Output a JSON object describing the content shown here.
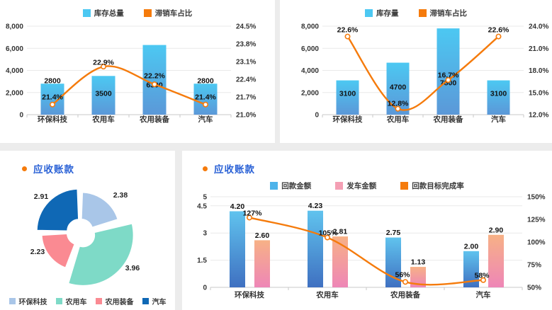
{
  "style": {
    "accent_orange": "#f57b0c",
    "title_blue": "#2b62d6",
    "panel_bg": "#ffffff",
    "page_bg": "#ececec",
    "grid_color": "#e9e9e9",
    "axis_color": "#c9c9c9",
    "tick_text": "#333333",
    "label_text": "#111111",
    "bar_blue_top": "#4cc8f2",
    "bar_blue_bottom": "#5b98d8",
    "bar4_blue_top": "#60c3ee",
    "bar4_blue_bottom": "#3f70c1",
    "bar4_pink_top": "#f7b186",
    "bar4_pink_bottom": "#ee86b7",
    "legend4_blue": "#4db3ea",
    "legend4_pink": "#f49fb4",
    "donut_colors": [
      "#a9c6e8",
      "#7edac7",
      "#fa8a92",
      "#0f68b5"
    ]
  },
  "chart_data": [
    {
      "panel": "top-left",
      "type": "bar+line",
      "categories": [
        "环保科技",
        "农用车",
        "农用装备",
        "汽车"
      ],
      "legend": [
        "库存总量",
        "滞销车占比"
      ],
      "series": [
        {
          "name": "库存总量",
          "type": "bar",
          "values": [
            2800,
            3500,
            6300,
            2800
          ],
          "labels": [
            "2800",
            "3500",
            "6300",
            "2800"
          ]
        },
        {
          "name": "滞销车占比",
          "type": "line",
          "values": [
            21.4,
            22.9,
            22.2,
            21.4
          ],
          "labels": [
            "21.4%",
            "22.9%",
            "22.2%",
            "21.4%"
          ]
        }
      ],
      "y_left": {
        "min": 0,
        "max": 8000,
        "tick_values": [
          0,
          2000,
          4000,
          6000,
          8000
        ],
        "tick_labels": [
          "0",
          "2,000",
          "4,000",
          "6,000",
          "8,000"
        ]
      },
      "y_right": {
        "min": 21.0,
        "max": 24.5,
        "tick_values": [
          21.0,
          21.7,
          22.4,
          23.1,
          23.8,
          24.5
        ],
        "tick_labels": [
          "21.0%",
          "21.7%",
          "22.4%",
          "23.1%",
          "23.8%",
          "24.5%"
        ]
      }
    },
    {
      "panel": "top-right",
      "type": "bar+line",
      "categories": [
        "环保科技",
        "农用车",
        "农用装备",
        "汽车"
      ],
      "legend": [
        "库存量",
        "滞销车占比"
      ],
      "series": [
        {
          "name": "库存量",
          "type": "bar",
          "values": [
            3100,
            4700,
            7800,
            3100
          ],
          "labels": [
            "3100",
            "4700",
            "7800",
            "3100"
          ]
        },
        {
          "name": "滞销车占比",
          "type": "line",
          "values": [
            22.6,
            12.8,
            16.7,
            22.6
          ],
          "labels": [
            "22.6%",
            "12.8%",
            "16.7%",
            "22.6%"
          ]
        }
      ],
      "y_left": {
        "min": 0,
        "max": 8000,
        "tick_values": [
          0,
          2000,
          4000,
          6000,
          8000
        ],
        "tick_labels": [
          "0",
          "2,000",
          "4,000",
          "6,000",
          "8,000"
        ]
      },
      "y_right": {
        "min": 12.0,
        "max": 24.0,
        "tick_values": [
          12,
          15,
          18,
          21,
          24
        ],
        "tick_labels": [
          "12.0%",
          "15.0%",
          "18.0%",
          "21.0%",
          "24.0%"
        ]
      }
    },
    {
      "panel": "bottom-left",
      "type": "donut",
      "title": "应收账款",
      "labels": [
        "环保科技",
        "农用车",
        "农用装备",
        "汽车"
      ],
      "values": [
        2.38,
        3.96,
        2.23,
        2.91
      ],
      "value_labels": [
        "2.38",
        "3.96",
        "2.23",
        "2.91"
      ],
      "legend": [
        "环保科技",
        "农用车",
        "农用装备",
        "汽车"
      ]
    },
    {
      "panel": "bottom-right",
      "type": "grouped-bar+line",
      "title": "应收账款",
      "categories": [
        "环保科技",
        "农用车",
        "农用装备",
        "汽车"
      ],
      "legend": [
        "回款金额",
        "发车金额",
        "回款目标完成率"
      ],
      "series": [
        {
          "name": "回款金额",
          "type": "bar",
          "values": [
            4.2,
            4.23,
            2.75,
            2.0
          ],
          "labels": [
            "4.20",
            "4.23",
            "2.75",
            "2.00"
          ]
        },
        {
          "name": "发车金额",
          "type": "bar",
          "values": [
            2.6,
            2.81,
            1.13,
            2.9
          ],
          "labels": [
            "2.60",
            "2.81",
            "1.13",
            "2.90"
          ]
        },
        {
          "name": "回款目标完成率",
          "type": "line",
          "values": [
            127,
            105,
            56,
            58
          ],
          "labels": [
            "127%",
            "105%",
            "56%",
            "58%"
          ]
        }
      ],
      "y_left": {
        "min": 0,
        "max": 5,
        "tick_values": [
          0,
          1.5,
          3,
          4.5,
          5
        ],
        "tick_labels": [
          "0",
          "1.5",
          "3",
          "4.5",
          "5"
        ]
      },
      "y_right": {
        "min": 50,
        "max": 150,
        "tick_values": [
          50,
          75,
          100,
          125,
          150
        ],
        "tick_labels": [
          "50%",
          "75%",
          "100%",
          "125%",
          "150%"
        ]
      }
    }
  ]
}
